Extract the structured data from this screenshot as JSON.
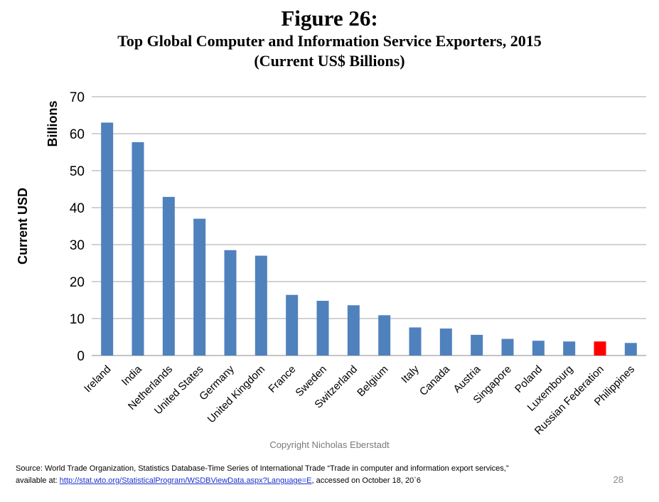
{
  "title": "Figure 26:",
  "subtitle_line1": "Top Global Computer and Information Service Exporters, 2015",
  "subtitle_line2": "(Current US$ Billions)",
  "chart_data": {
    "type": "bar",
    "categories": [
      "Ireland",
      "India",
      "Netherlands",
      "United States",
      "Germany",
      "United Kingdom",
      "France",
      "Sweden",
      "Switzerland",
      "Belgium",
      "Italy",
      "Canada",
      "Austria",
      "Singapore",
      "Poland",
      "Luxembourg",
      "Russian Federation",
      "Philippines"
    ],
    "values": [
      63.0,
      57.7,
      42.9,
      37.0,
      28.5,
      27.0,
      16.4,
      14.8,
      13.6,
      10.9,
      7.6,
      7.3,
      5.6,
      4.5,
      4.0,
      3.8,
      3.8,
      3.4
    ],
    "ylabel": "Current USD",
    "yunit_label": "Billions",
    "ylim": [
      0,
      70
    ],
    "yticks": [
      0,
      10,
      20,
      30,
      40,
      50,
      60,
      70
    ],
    "grid": true,
    "legend": "none",
    "bar_color": "#4f81bd",
    "highlight_category": "Russian Federation",
    "highlight_color": "#ff0000"
  },
  "copyright": "Copyright Nicholas Eberstadt",
  "source": {
    "prefix": "Source:  World Trade Organization, Statistics Database-Time Series of International Trade “Trade in computer and information export services,”",
    "line2_prefix": "available at: ",
    "link_text": "http://stat.wto.org/StatisticalProgram/WSDBViewData.aspx?Language=E",
    "suffix": ", accessed on October 18, 20`6"
  },
  "page_number": "28"
}
